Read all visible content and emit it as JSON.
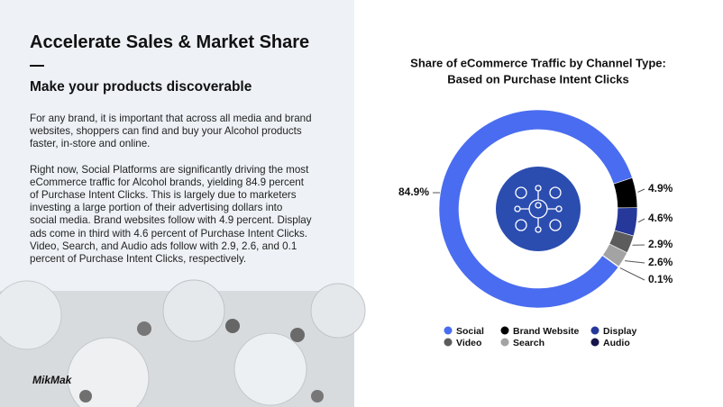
{
  "slide": {
    "heading": "Accelerate Sales & Market Share",
    "subheading": "Make your products discoverable",
    "paragraphs": [
      [
        "For any brand, it is important that across all media and brand",
        "websites, shoppers can find and buy your Alcohol products",
        "faster, in-store and online."
      ],
      [
        "Right now, Social Platforms are significantly driving the most",
        "eCommerce  traffic for Alcohol brands, yielding 84.9 percent",
        "of Purchase Intent Clicks. This is largely due to marketers",
        "investing a large portion of their advertising dollars into",
        "social media. Brand websites follow with 4.9 percent. Display",
        "ads come in third with 4.6 percent of Purchase Intent Clicks.",
        "Video, Search, and Audio ads follow with 2.9, 2.6, and 0.1",
        "percent of Purchase Intent Clicks, respectively."
      ]
    ],
    "logo": "MikMak"
  },
  "chart_data": {
    "type": "donut",
    "title": "Share of eCommerce Traffic by Channel Type:",
    "subtitle": "Based on Purchase Intent Clicks",
    "categories": [
      "Social",
      "Brand Website",
      "Display",
      "Video",
      "Search",
      "Audio"
    ],
    "values": [
      84.9,
      4.9,
      4.6,
      2.9,
      2.6,
      0.1
    ],
    "value_labels": [
      "84.9%",
      "4.9%",
      "4.6%",
      "2.9%",
      "2.6%",
      "0.1%"
    ],
    "colors": [
      "#4a6cf0",
      "#000000",
      "#26399a",
      "#5c5c5c",
      "#a3a3a3",
      "#16164a"
    ]
  }
}
